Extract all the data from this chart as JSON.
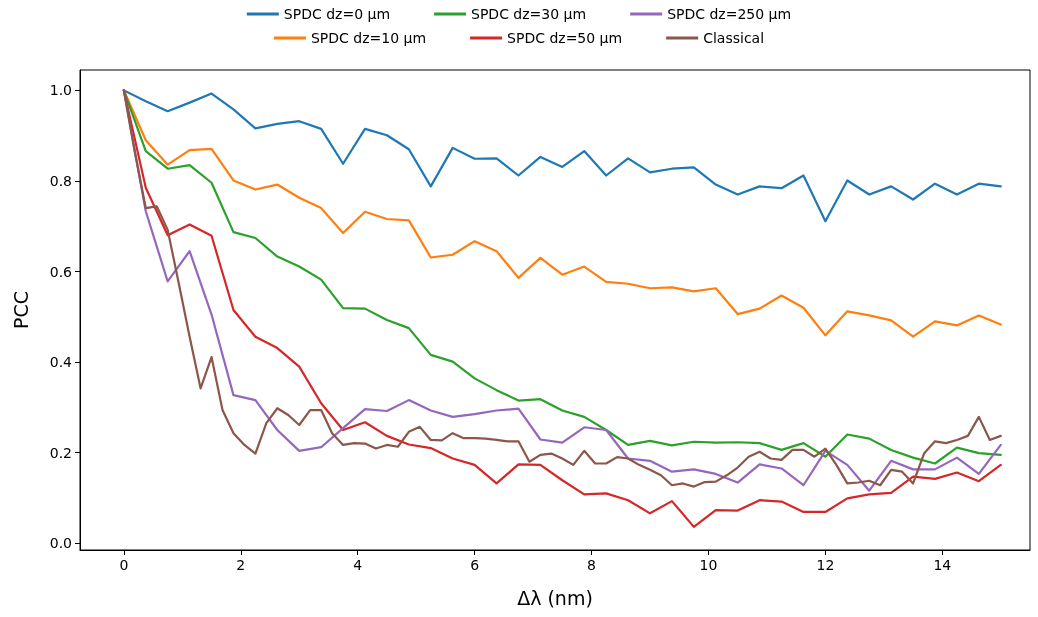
{
  "chart_data": {
    "type": "line",
    "xlabel": "Δλ (nm)",
    "ylabel": "PCC",
    "x": [
      0,
      0.375,
      0.75,
      1.125,
      1.5,
      1.875,
      2.25,
      2.625,
      3,
      3.375,
      3.75,
      4.125,
      4.5,
      4.875,
      5.25,
      5.625,
      6,
      6.375,
      6.75,
      7.125,
      7.5,
      7.875,
      8.25,
      8.625,
      9,
      9.375,
      9.75,
      10.125,
      10.5,
      10.875,
      11.25,
      11.625,
      12,
      12.375,
      12.75,
      13.125,
      13.5,
      13.875,
      14.25,
      14.625,
      15
    ],
    "series": [
      {
        "name": "SPDC dz=0 µm",
        "color": "#1f77b4",
        "values": [
          1.0,
          0.976,
          0.954,
          0.973,
          0.993,
          0.958,
          0.916,
          0.926,
          0.932,
          0.915,
          0.838,
          0.915,
          0.901,
          0.87,
          0.788,
          0.873,
          0.849,
          0.85,
          0.812,
          0.853,
          0.831,
          0.866,
          0.812,
          0.85,
          0.819,
          0.827,
          0.83,
          0.792,
          0.77,
          0.788,
          0.784,
          0.812,
          0.711,
          0.801,
          0.77,
          0.788,
          0.759,
          0.794,
          0.77,
          0.794,
          0.788
        ]
      },
      {
        "name": "SPDC dz=10 µm",
        "color": "#ff7f0e",
        "values": [
          1.0,
          0.89,
          0.836,
          0.868,
          0.871,
          0.801,
          0.781,
          0.792,
          0.763,
          0.74,
          0.685,
          0.732,
          0.716,
          0.713,
          0.631,
          0.637,
          0.667,
          0.645,
          0.586,
          0.63,
          0.593,
          0.611,
          0.577,
          0.573,
          0.563,
          0.565,
          0.556,
          0.563,
          0.506,
          0.518,
          0.547,
          0.52,
          0.459,
          0.512,
          0.503,
          0.492,
          0.456,
          0.49,
          0.481,
          0.503,
          0.483
        ]
      },
      {
        "name": "SPDC dz=30 µm",
        "color": "#2ca02c",
        "values": [
          1.0,
          0.866,
          0.827,
          0.835,
          0.796,
          0.687,
          0.674,
          0.633,
          0.611,
          0.582,
          0.519,
          0.518,
          0.493,
          0.475,
          0.416,
          0.401,
          0.364,
          0.338,
          0.315,
          0.318,
          0.293,
          0.279,
          0.25,
          0.217,
          0.226,
          0.216,
          0.224,
          0.222,
          0.223,
          0.221,
          0.206,
          0.221,
          0.191,
          0.24,
          0.231,
          0.206,
          0.189,
          0.176,
          0.211,
          0.199,
          0.195
        ]
      },
      {
        "name": "SPDC dz=50 µm",
        "color": "#d62728",
        "values": [
          1.0,
          0.785,
          0.68,
          0.704,
          0.679,
          0.515,
          0.456,
          0.431,
          0.39,
          0.309,
          0.25,
          0.267,
          0.237,
          0.218,
          0.21,
          0.187,
          0.173,
          0.132,
          0.174,
          0.173,
          0.139,
          0.108,
          0.11,
          0.095,
          0.066,
          0.093,
          0.036,
          0.073,
          0.072,
          0.095,
          0.092,
          0.069,
          0.069,
          0.099,
          0.108,
          0.111,
          0.147,
          0.142,
          0.156,
          0.137,
          0.173
        ]
      },
      {
        "name": "SPDC dz=250 µm",
        "color": "#9467bd",
        "values": [
          1.0,
          0.733,
          0.578,
          0.645,
          0.505,
          0.327,
          0.316,
          0.25,
          0.204,
          0.212,
          0.254,
          0.296,
          0.292,
          0.316,
          0.293,
          0.279,
          0.285,
          0.293,
          0.297,
          0.229,
          0.222,
          0.256,
          0.25,
          0.187,
          0.182,
          0.158,
          0.163,
          0.153,
          0.134,
          0.174,
          0.165,
          0.128,
          0.204,
          0.173,
          0.116,
          0.182,
          0.163,
          0.163,
          0.189,
          0.153,
          0.217
        ]
      },
      {
        "name": "Classical",
        "color": "#8c564b",
        "x": [
          0,
          0.1875,
          0.375,
          0.5625,
          0.75,
          0.9375,
          1.125,
          1.3125,
          1.5,
          1.6875,
          1.875,
          2.0625,
          2.25,
          2.4375,
          2.625,
          2.8125,
          3,
          3.1875,
          3.375,
          3.5625,
          3.75,
          3.9375,
          4.125,
          4.3125,
          4.5,
          4.6875,
          4.875,
          5.0625,
          5.25,
          5.4375,
          5.625,
          5.8125,
          6,
          6.1875,
          6.375,
          6.5625,
          6.75,
          6.9375,
          7.125,
          7.3125,
          7.5,
          7.6875,
          7.875,
          8.0625,
          8.25,
          8.4375,
          8.625,
          8.8125,
          9,
          9.1875,
          9.375,
          9.5625,
          9.75,
          9.9375,
          10.125,
          10.3125,
          10.5,
          10.6875,
          10.875,
          11.0625,
          11.25,
          11.4375,
          11.625,
          11.8125,
          12,
          12.1875,
          12.375,
          12.5625,
          12.75,
          12.9375,
          13.125,
          13.3125,
          13.5,
          13.6875,
          13.875,
          14.0625,
          14.25,
          14.4375,
          14.625,
          14.8125,
          15
        ],
        "values": [
          1.0,
          0.864,
          0.74,
          0.744,
          0.692,
          0.575,
          0.456,
          0.342,
          0.411,
          0.294,
          0.243,
          0.217,
          0.198,
          0.265,
          0.298,
          0.283,
          0.261,
          0.294,
          0.294,
          0.243,
          0.217,
          0.221,
          0.22,
          0.209,
          0.217,
          0.213,
          0.246,
          0.257,
          0.228,
          0.227,
          0.243,
          0.232,
          0.232,
          0.231,
          0.228,
          0.225,
          0.225,
          0.18,
          0.195,
          0.198,
          0.187,
          0.173,
          0.204,
          0.176,
          0.176,
          0.19,
          0.187,
          0.173,
          0.162,
          0.15,
          0.128,
          0.132,
          0.125,
          0.135,
          0.136,
          0.15,
          0.167,
          0.191,
          0.202,
          0.187,
          0.184,
          0.206,
          0.206,
          0.191,
          0.209,
          0.173,
          0.132,
          0.134,
          0.138,
          0.128,
          0.162,
          0.158,
          0.132,
          0.198,
          0.225,
          0.221,
          0.228,
          0.237,
          0.279,
          0.228,
          0.237
        ]
      }
    ],
    "xlim": [
      -0.75,
      15.5
    ],
    "xticks": [
      0,
      2,
      4,
      6,
      8,
      10,
      12,
      14
    ],
    "ylim": [
      -0.015,
      1.045
    ],
    "yticks": [
      {
        "value": 0,
        "label": "0.0"
      },
      0.2,
      0.4,
      0.6,
      0.8,
      {
        "value": 1,
        "label": "1.0"
      }
    ],
    "grid": false,
    "legend": "top",
    "marker": "none",
    "line_style": "solid"
  }
}
